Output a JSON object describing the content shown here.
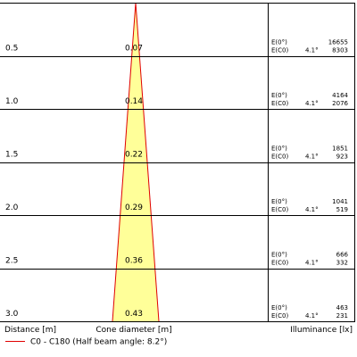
{
  "rows": [
    {
      "distance": "0.5",
      "diameter": "0.07",
      "e0_label": "E(0°)",
      "ec0_label": "E(C0)",
      "angle": "4.1°",
      "e0": "16655",
      "ec0": "8303"
    },
    {
      "distance": "1.0",
      "diameter": "0.14",
      "e0_label": "E(0°)",
      "ec0_label": "E(C0)",
      "angle": "4.1°",
      "e0": "4164",
      "ec0": "2076"
    },
    {
      "distance": "1.5",
      "diameter": "0.22",
      "e0_label": "E(0°)",
      "ec0_label": "E(C0)",
      "angle": "4.1°",
      "e0": "1851",
      "ec0": "923"
    },
    {
      "distance": "2.0",
      "diameter": "0.29",
      "e0_label": "E(0°)",
      "ec0_label": "E(C0)",
      "angle": "4.1°",
      "e0": "1041",
      "ec0": "519"
    },
    {
      "distance": "2.5",
      "diameter": "0.36",
      "e0_label": "E(0°)",
      "ec0_label": "E(C0)",
      "angle": "4.1°",
      "e0": "666",
      "ec0": "332"
    },
    {
      "distance": "3.0",
      "diameter": "0.43",
      "e0_label": "E(0°)",
      "ec0_label": "E(C0)",
      "angle": "4.1°",
      "e0": "463",
      "ec0": "231"
    }
  ],
  "footer": {
    "distance": "Distance [m]",
    "diameter": "Cone diameter [m]",
    "illuminance": "Illuminance [lx]"
  },
  "legend": "C0 - C180 (Half beam angle: 8.2°)"
}
